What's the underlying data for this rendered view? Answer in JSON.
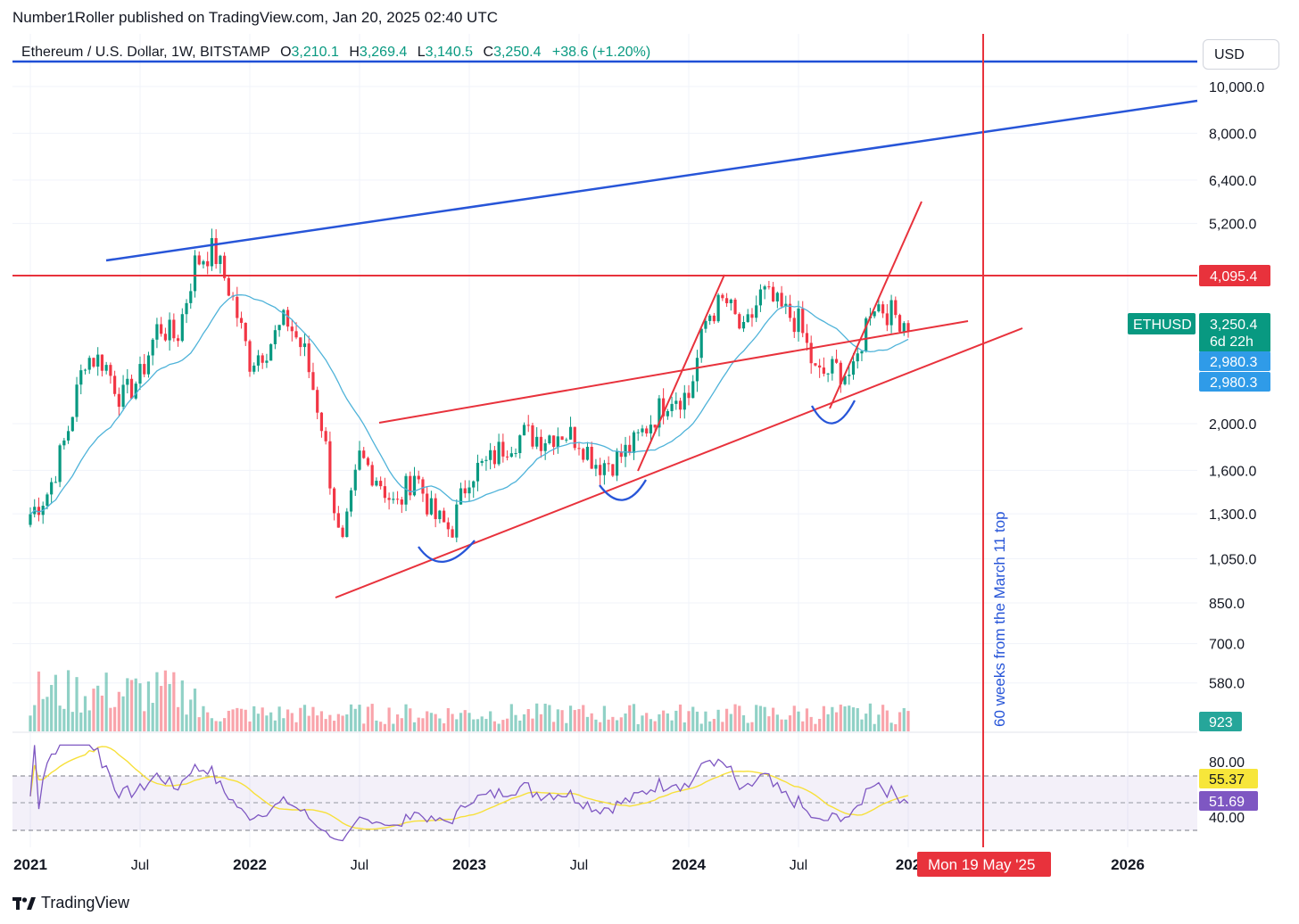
{
  "publisher": "Number1Roller published on TradingView.com, Jan 20, 2025 02:40 UTC",
  "legend": {
    "symbol": "Ethereum / U.S. Dollar, 1W, BITSTAMP",
    "o_label": "O",
    "o": "3,210.1",
    "h_label": "H",
    "h": "3,269.4",
    "l_label": "L",
    "l": "3,140.5",
    "c_label": "C",
    "c": "3,250.4",
    "change": "+38.6 (+1.20%)"
  },
  "currency_button": "USD",
  "brand": "TradingView",
  "colors": {
    "up": "#089981",
    "down": "#f23645",
    "trendline_red": "#e8323c",
    "trendline_blue": "#2962ff",
    "ma": "#4fb3d9",
    "rsi": "#7e57c2",
    "rsi_ma": "#f7e03a"
  },
  "chart_data": {
    "type": "candlestick",
    "title": "Ethereum / U.S. Dollar, 1W, BITSTAMP",
    "y_scale": "log",
    "y_ticks": [
      "10,000.0",
      "8,000.0",
      "6,400.0",
      "5,200.0",
      "2,000.0",
      "1,600.0",
      "1,300.0",
      "1,050.0",
      "850.0",
      "700.0",
      "580.0",
      "0"
    ],
    "y_tick_values": [
      10000,
      8000,
      6400,
      5200,
      2000,
      1600,
      1300,
      1050,
      850,
      700,
      580
    ],
    "x_ticks": [
      "2021",
      "Jul",
      "2022",
      "Jul",
      "2023",
      "Jul",
      "2024",
      "Jul",
      "202",
      "2026"
    ],
    "x_range": [
      "2021-01",
      "2026-06"
    ],
    "close_series_monthly": {
      "months": [
        "2021-01",
        "2021-02",
        "2021-03",
        "2021-04",
        "2021-05",
        "2021-06",
        "2021-07",
        "2021-08",
        "2021-09",
        "2021-10",
        "2021-11",
        "2021-12",
        "2022-01",
        "2022-02",
        "2022-03",
        "2022-04",
        "2022-05",
        "2022-06",
        "2022-07",
        "2022-08",
        "2022-09",
        "2022-10",
        "2022-11",
        "2022-12",
        "2023-01",
        "2023-02",
        "2023-03",
        "2023-04",
        "2023-05",
        "2023-06",
        "2023-07",
        "2023-08",
        "2023-09",
        "2023-10",
        "2023-11",
        "2023-12",
        "2024-01",
        "2024-02",
        "2024-03",
        "2024-04",
        "2024-05",
        "2024-06",
        "2024-07",
        "2024-08",
        "2024-09",
        "2024-10",
        "2024-11",
        "2024-12",
        "2025-01"
      ],
      "values": [
        1300,
        1450,
        1900,
        2750,
        2700,
        2250,
        2500,
        3200,
        3000,
        4300,
        4600,
        3700,
        2700,
        2900,
        3300,
        2800,
        1950,
        1070,
        1700,
        1550,
        1330,
        1590,
        1290,
        1200,
        1580,
        1650,
        1820,
        1900,
        1870,
        1930,
        1860,
        1650,
        1680,
        1810,
        2050,
        2300,
        2280,
        3350,
        3600,
        3050,
        3750,
        3450,
        3250,
        2500,
        2600,
        2520,
        3600,
        3400,
        3250
      ]
    },
    "moving_average": {
      "value": "2,980.3"
    },
    "volume": {
      "last": "923"
    },
    "rsi": {
      "ticks": [
        "80.00",
        "40.00"
      ],
      "rsi_value": "51.69",
      "rsi_ma_value": "55.37"
    },
    "price_tags": {
      "resistance": "4,095.4",
      "ethusd_label": "ETHUSD",
      "last_price": "3,250.4",
      "countdown": "6d 22h",
      "ma1": "2,980.3",
      "ma2": "2,980.3",
      "volume": "923"
    },
    "annotations": {
      "vertical_line_text": "60 weeks from the March 11 top",
      "vertical_line_date": "Mon 19 May '25",
      "horizontal_level": 4095.4
    }
  }
}
